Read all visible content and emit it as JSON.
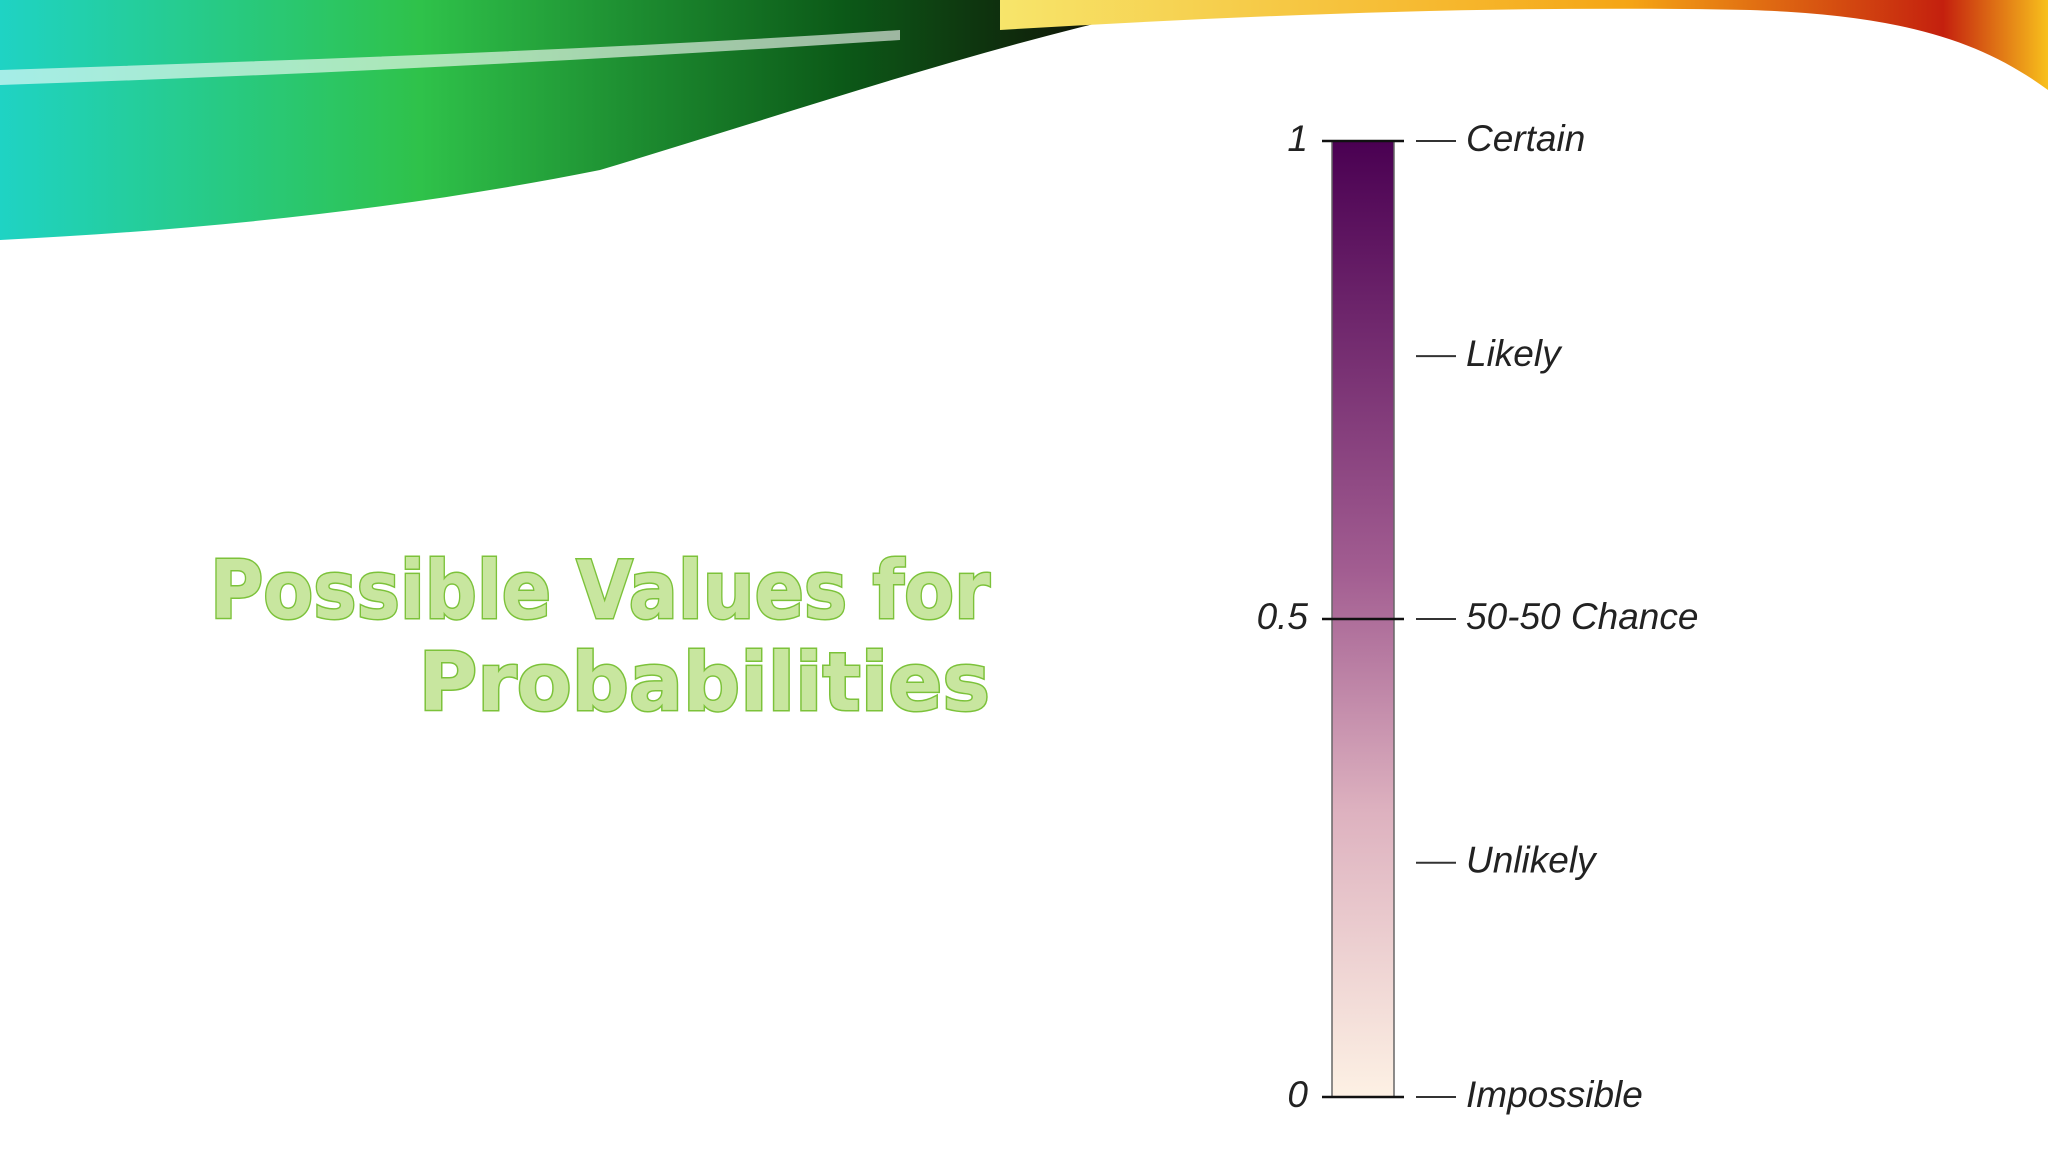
{
  "title": {
    "lines": [
      "Possible Values for",
      "Probabilities"
    ]
  },
  "scale": {
    "ylim": [
      0,
      1
    ],
    "ticks": [
      1,
      0.5,
      0
    ],
    "labels": [
      {
        "text": "Certain",
        "value": 1
      },
      {
        "text": "Likely",
        "value": 0.775
      },
      {
        "text": "50-50 Chance",
        "value": 0.5
      },
      {
        "text": "Unlikely",
        "value": 0.245
      },
      {
        "text": "Impossible",
        "value": 0
      }
    ]
  }
}
